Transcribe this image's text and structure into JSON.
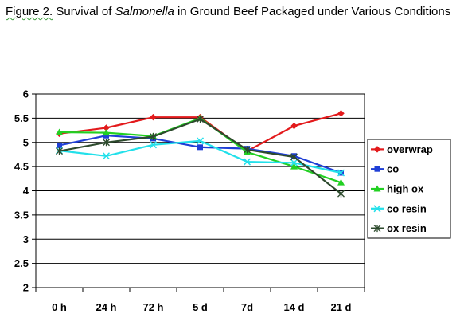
{
  "title": {
    "figure_label": "Figure 2.",
    "before_italic": "  Survival of ",
    "italic": "Salmonella",
    "after_italic": " in Ground Beef  Packaged under Various Conditions"
  },
  "chart_data": {
    "type": "line",
    "title": "Figure 2.  Survival of Salmonella in Ground Beef  Packaged under Various Conditions",
    "xlabel": "",
    "ylabel": "",
    "categories": [
      "0 h",
      "24 h",
      "72 h",
      "5 d",
      "7d",
      "14 d",
      "21 d"
    ],
    "ylim": [
      2,
      6
    ],
    "yticks": [
      "2",
      "2.5",
      "3",
      "3.5",
      "4",
      "4.5",
      "5",
      "5.5",
      "6"
    ],
    "grid": "horizontal",
    "legend_position": "right",
    "series": [
      {
        "name": "overwrap",
        "color": "#e31a1c",
        "marker": "diamond",
        "values": [
          5.18,
          5.3,
          5.52,
          5.52,
          4.82,
          5.34,
          5.6
        ]
      },
      {
        "name": "co",
        "color": "#1f3fd6",
        "marker": "square",
        "values": [
          4.94,
          5.14,
          5.08,
          4.9,
          4.87,
          4.72,
          4.37
        ]
      },
      {
        "name": "high ox",
        "color": "#22d022",
        "marker": "triangle",
        "values": [
          5.21,
          5.2,
          5.13,
          5.5,
          4.8,
          4.5,
          4.17
        ]
      },
      {
        "name": "co resin",
        "color": "#22e0ea",
        "marker": "x",
        "values": [
          4.83,
          4.72,
          4.95,
          5.03,
          4.6,
          4.58,
          4.37
        ]
      },
      {
        "name": "ox resin",
        "color": "#2d4a2d",
        "marker": "star",
        "values": [
          4.82,
          5.0,
          5.12,
          5.48,
          4.85,
          4.7,
          3.94
        ]
      }
    ]
  }
}
